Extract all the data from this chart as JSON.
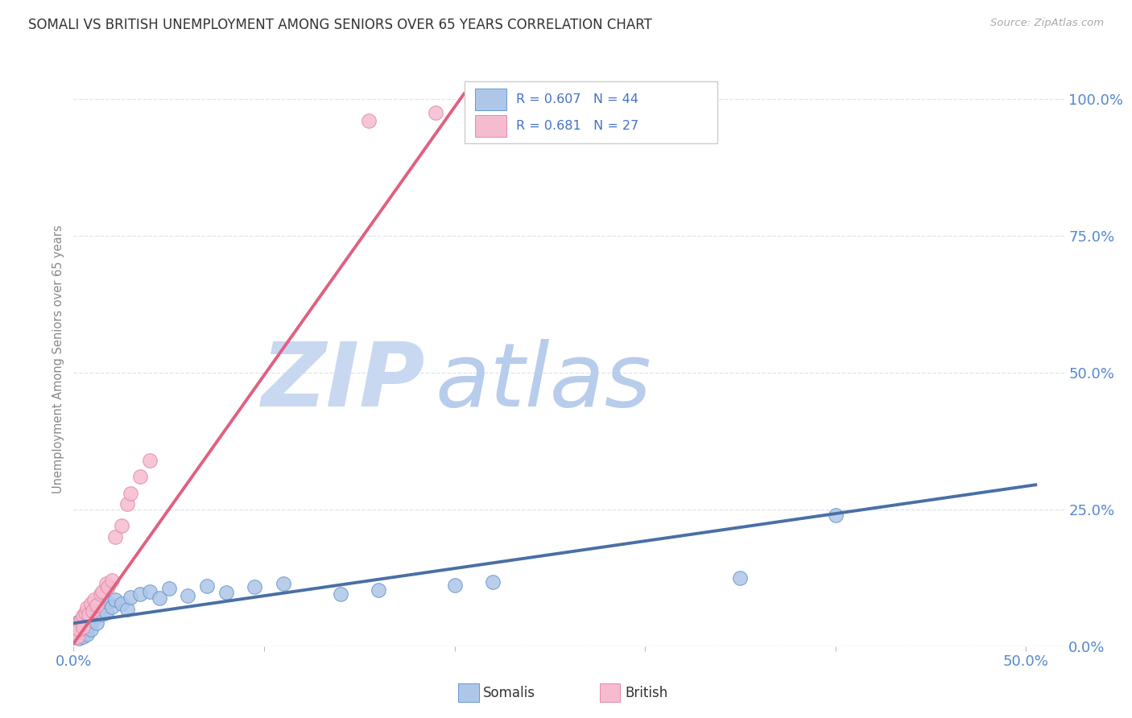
{
  "title": "SOMALI VS BRITISH UNEMPLOYMENT AMONG SENIORS OVER 65 YEARS CORRELATION CHART",
  "source": "Source: ZipAtlas.com",
  "ylabel": "Unemployment Among Seniors over 65 years",
  "xlim": [
    0.0,
    0.52
  ],
  "ylim": [
    0.0,
    1.05
  ],
  "xticks": [
    0.0,
    0.1,
    0.2,
    0.3,
    0.4,
    0.5
  ],
  "yticks": [
    0.0,
    0.25,
    0.5,
    0.75,
    1.0
  ],
  "yticklabels_right": [
    "0.0%",
    "25.0%",
    "50.0%",
    "75.0%",
    "100.0%"
  ],
  "somali_color": "#aec6e8",
  "british_color": "#f5bcd0",
  "somali_edge_color": "#6699cc",
  "british_edge_color": "#e888aa",
  "somali_line_color": "#4a6fa5",
  "british_line_color": "#e06080",
  "legend_color": "#4472c4",
  "title_color": "#333333",
  "source_color": "#aaaaaa",
  "ylabel_color": "#888888",
  "tick_color": "#5588cc",
  "grid_color": "#dde4ee",
  "bg_color": "#ffffff",
  "somali_R": 0.607,
  "somali_N": 44,
  "british_R": 0.681,
  "british_N": 27,
  "zip_color": "#c8d8f0",
  "atlas_color": "#b8ccec",
  "somali_x": [
    0.001,
    0.002,
    0.002,
    0.003,
    0.003,
    0.004,
    0.004,
    0.005,
    0.005,
    0.006,
    0.006,
    0.007,
    0.008,
    0.009,
    0.01,
    0.01,
    0.011,
    0.012,
    0.013,
    0.014,
    0.015,
    0.016,
    0.017,
    0.018,
    0.02,
    0.022,
    0.025,
    0.028,
    0.03,
    0.035,
    0.04,
    0.045,
    0.05,
    0.06,
    0.07,
    0.08,
    0.095,
    0.11,
    0.14,
    0.16,
    0.2,
    0.22,
    0.35,
    0.4
  ],
  "somali_y": [
    0.025,
    0.02,
    0.035,
    0.015,
    0.045,
    0.028,
    0.04,
    0.018,
    0.05,
    0.032,
    0.055,
    0.022,
    0.038,
    0.03,
    0.048,
    0.06,
    0.055,
    0.042,
    0.065,
    0.07,
    0.058,
    0.075,
    0.062,
    0.08,
    0.072,
    0.085,
    0.078,
    0.068,
    0.09,
    0.095,
    0.1,
    0.088,
    0.105,
    0.092,
    0.11,
    0.098,
    0.108,
    0.115,
    0.095,
    0.102,
    0.112,
    0.118,
    0.125,
    0.24
  ],
  "british_x": [
    0.001,
    0.002,
    0.002,
    0.003,
    0.004,
    0.005,
    0.005,
    0.006,
    0.007,
    0.008,
    0.009,
    0.01,
    0.011,
    0.012,
    0.014,
    0.015,
    0.017,
    0.018,
    0.02,
    0.022,
    0.025,
    0.028,
    0.03,
    0.035,
    0.04,
    0.155,
    0.19
  ],
  "british_y": [
    0.025,
    0.018,
    0.04,
    0.03,
    0.048,
    0.055,
    0.035,
    0.062,
    0.07,
    0.058,
    0.078,
    0.065,
    0.085,
    0.075,
    0.095,
    0.1,
    0.115,
    0.108,
    0.12,
    0.2,
    0.22,
    0.26,
    0.28,
    0.31,
    0.34,
    0.96,
    0.975
  ],
  "somali_line_x0": 0.0,
  "somali_line_x1": 0.505,
  "somali_line_y0": 0.042,
  "somali_line_y1": 0.295,
  "british_line_x0": 0.0,
  "british_line_x1": 0.205,
  "british_line_y0": 0.005,
  "british_line_y1": 1.01
}
